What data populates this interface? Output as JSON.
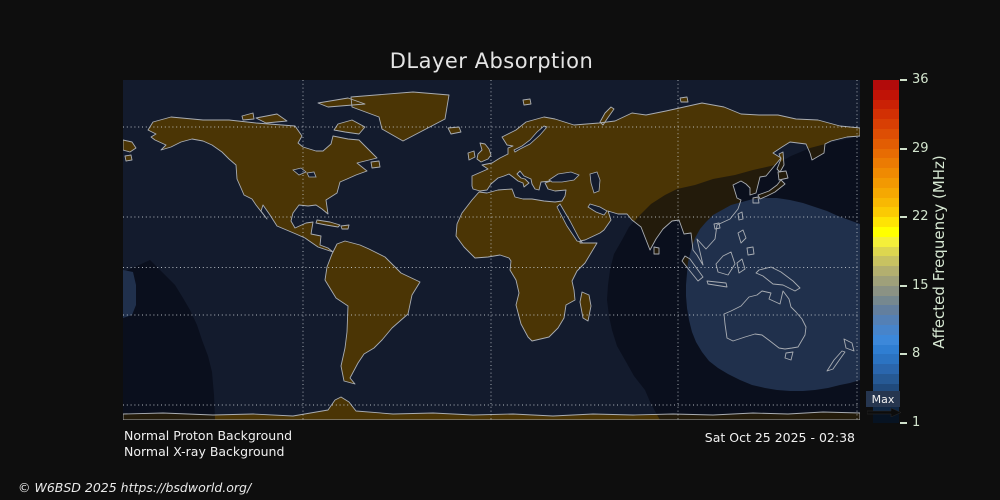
{
  "title": "DLayer Absorption",
  "annotations": {
    "proton_status": "Normal Proton Background",
    "xray_status": "Normal X-ray Background",
    "timestamp": "Sat Oct 25 2025 - 02:38",
    "copyright": "© W6BSD 2025 https://bsdworld.org/"
  },
  "colorbar": {
    "label": "Affected Frequency (MHz)",
    "unit": "MHz",
    "value_min": 1,
    "value_max": 36,
    "tick_values": [
      36,
      29,
      22,
      15,
      8,
      1
    ],
    "max_marker": {
      "label": "Max",
      "value": 2
    },
    "segments": [
      "#b20b0b",
      "#c01306",
      "#ca2105",
      "#d23004",
      "#d83f04",
      "#dd4e04",
      "#e25d03",
      "#e76c03",
      "#eb7b03",
      "#ef8a02",
      "#f29902",
      "#f5a802",
      "#f8b803",
      "#fbca03",
      "#fee404",
      "#ffff00",
      "#f4ef3a",
      "#ddd64f",
      "#c8c261",
      "#b3af6f",
      "#9fa07a",
      "#8b9284",
      "#76888f",
      "#637f9e",
      "#5480b5",
      "#4784ca",
      "#3c88da",
      "#2f7ed2",
      "#2b73c2",
      "#2a66ad",
      "#265994",
      "#204a7c",
      "#183a62",
      "#0f2744",
      "#071322"
    ]
  },
  "map": {
    "projection": "equirectangular",
    "gridline_latitudes": [
      "66.5N",
      "23.5N",
      "0",
      "23.5S",
      "66.5S"
    ],
    "gridline_longitudes": [
      "90W",
      "0",
      "90E",
      "180"
    ],
    "colors": {
      "background": "#0e0e0e",
      "ocean": "#131b2d",
      "land": "#4b3505",
      "coastline": "#a9adb3",
      "absorption_outer": "rgba(3,6,16,0.55)",
      "absorption_inner": "#20304c",
      "gridline": "#cfd4d9"
    }
  }
}
